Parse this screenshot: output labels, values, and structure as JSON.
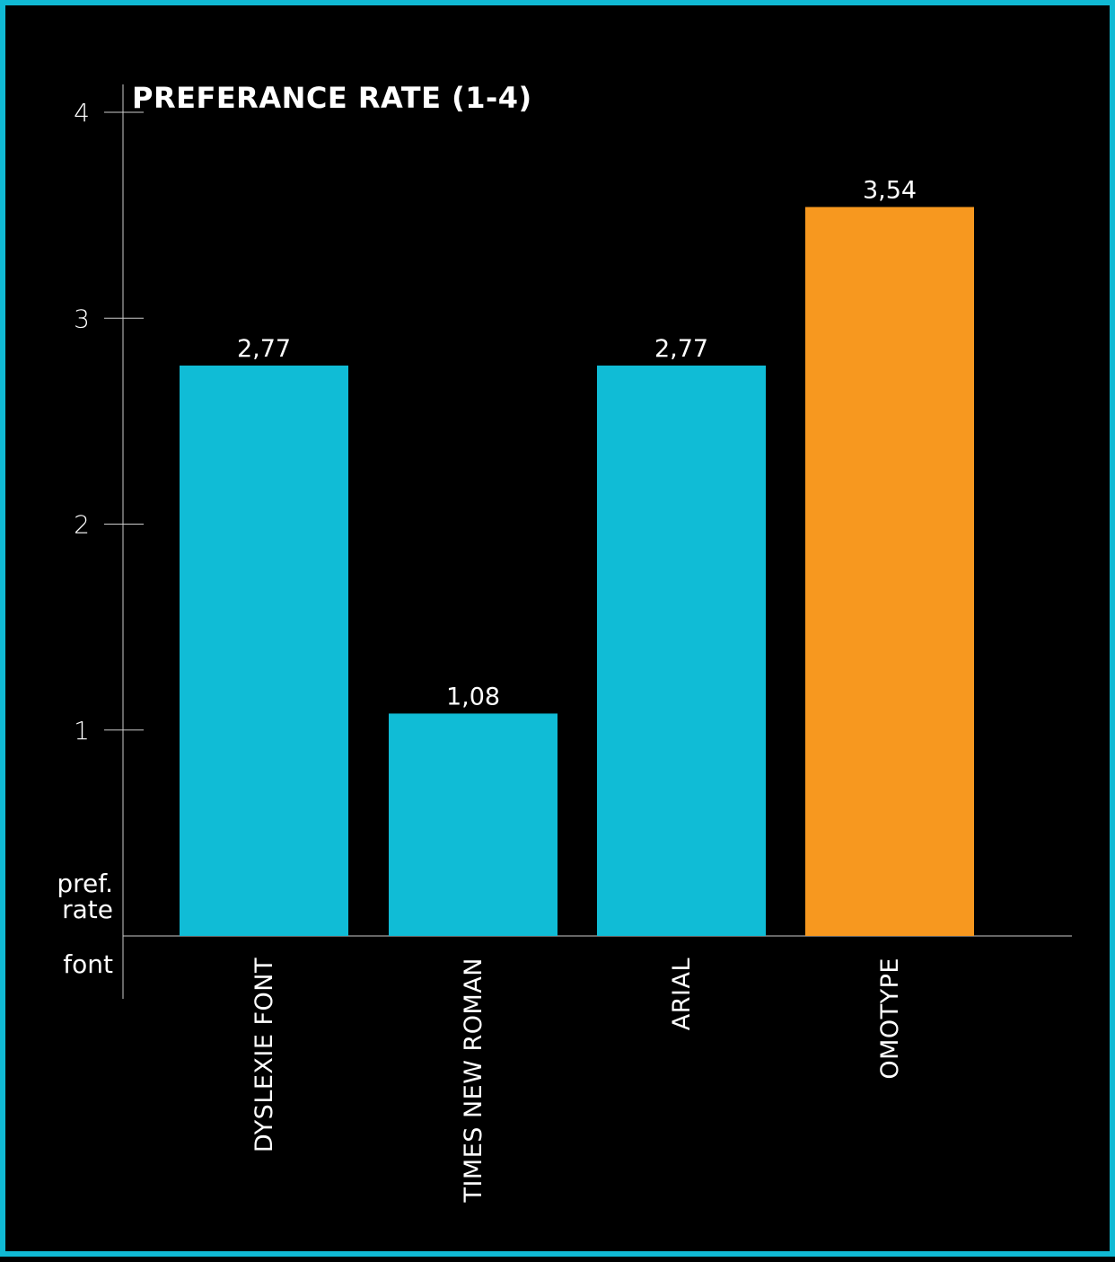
{
  "chart_data": {
    "type": "bar",
    "title": "PREFERANCE RATE (1-4)",
    "ylabel_lines": [
      "pref.",
      "rate"
    ],
    "xlabel": "font",
    "categories": [
      "DYSLEXIE FONT",
      "TIMES NEW ROMAN",
      "ARIAL",
      "OMOTYPE"
    ],
    "values": [
      2.77,
      1.08,
      2.77,
      3.54
    ],
    "value_labels": [
      "2,77",
      "1,08",
      "2,77",
      "3,54"
    ],
    "bar_colors": [
      "#10bcd6",
      "#10bcd6",
      "#10bcd6",
      "#f7981f"
    ],
    "ylim": [
      0,
      4
    ],
    "yticks": [
      1,
      2,
      3,
      4
    ],
    "ytick_labels": [
      "1",
      "2",
      "3",
      "4"
    ],
    "grid": false,
    "colors": {
      "background": "#000000",
      "border": "#10b9d4",
      "axis": "#cccccc",
      "text": "#ffffff"
    }
  }
}
